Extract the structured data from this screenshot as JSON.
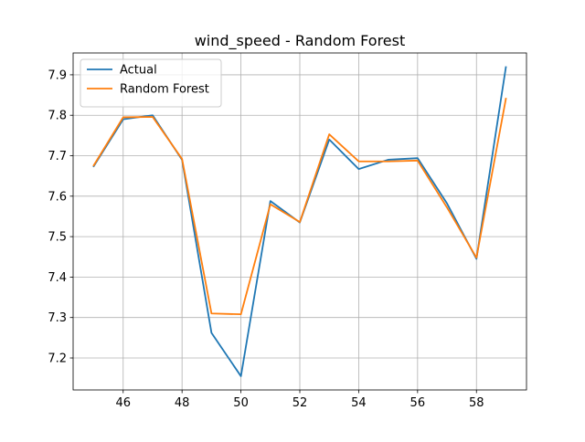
{
  "chart_data": {
    "type": "line",
    "title": "wind_speed - Random Forest",
    "xlabel": "",
    "ylabel": "",
    "x": [
      45,
      46,
      47,
      48,
      49,
      50,
      51,
      52,
      53,
      54,
      55,
      56,
      57,
      58,
      59
    ],
    "xlim": [
      44.3,
      59.7
    ],
    "ylim": [
      7.121,
      7.954
    ],
    "xticks": [
      46,
      48,
      50,
      52,
      54,
      56,
      58
    ],
    "yticks": [
      7.2,
      7.3,
      7.4,
      7.5,
      7.6,
      7.7,
      7.8,
      7.9
    ],
    "grid": true,
    "legend_position": "top-left",
    "series": [
      {
        "name": "Actual",
        "color": "#1f77b4",
        "values": [
          7.674,
          7.79,
          7.8,
          7.69,
          7.262,
          7.155,
          7.588,
          7.535,
          7.74,
          7.667,
          7.69,
          7.694,
          7.582,
          7.445,
          7.919
        ]
      },
      {
        "name": "Random Forest",
        "color": "#ff7f0e",
        "values": [
          7.676,
          7.795,
          7.796,
          7.692,
          7.31,
          7.308,
          7.58,
          7.536,
          7.753,
          7.686,
          7.686,
          7.688,
          7.572,
          7.448,
          7.841
        ]
      }
    ]
  }
}
